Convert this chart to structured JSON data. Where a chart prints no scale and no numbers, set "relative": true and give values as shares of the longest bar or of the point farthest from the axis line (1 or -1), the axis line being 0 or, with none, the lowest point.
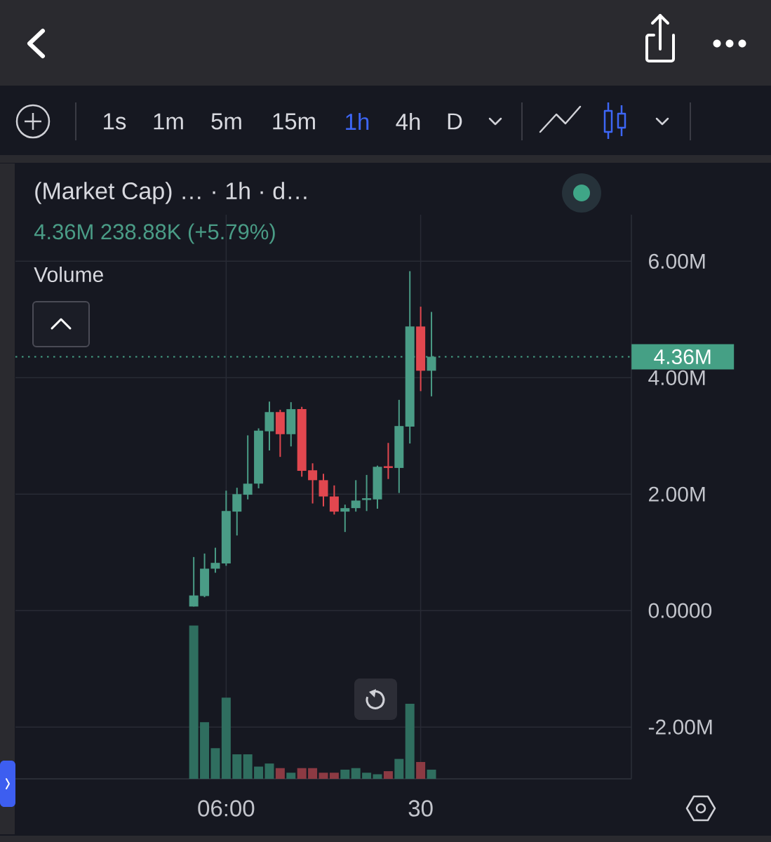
{
  "chart_data": [
    {
      "type": "candlestick",
      "title": "(Market Cap) … · 1h · d…",
      "subtitle": "4.36M 238.88K (+5.79%)",
      "categories": [
        null,
        null,
        null,
        null,
        null,
        null,
        null,
        null,
        null,
        null,
        null,
        null,
        null,
        null,
        null,
        null,
        null,
        null,
        null,
        "06:00",
        null,
        null,
        null,
        null,
        null,
        null,
        null,
        null,
        null,
        null,
        null,
        null,
        null,
        null,
        null,
        null,
        null,
        "30",
        null,
        null,
        null,
        null,
        null,
        null,
        null,
        null,
        null,
        null,
        null,
        null,
        null,
        null,
        null,
        null,
        null,
        null,
        null
      ],
      "ohlc": [
        null,
        null,
        null,
        null,
        null,
        null,
        null,
        null,
        null,
        null,
        null,
        null,
        null,
        null,
        null,
        null,
        [
          0.07,
          0.92,
          0.07,
          0.26
        ],
        [
          0.25,
          0.98,
          0.23,
          0.72
        ],
        [
          0.72,
          1.08,
          0.65,
          0.82
        ],
        [
          0.81,
          2.06,
          0.77,
          1.71
        ],
        [
          1.7,
          2.11,
          1.29,
          2.0
        ],
        [
          1.99,
          3.01,
          1.91,
          2.18
        ],
        [
          2.18,
          3.13,
          2.1,
          3.09
        ],
        [
          3.08,
          3.59,
          2.75,
          3.41
        ],
        [
          3.41,
          3.45,
          2.64,
          3.03
        ],
        [
          3.03,
          3.58,
          2.82,
          3.46
        ],
        [
          3.46,
          3.5,
          2.3,
          2.4
        ],
        [
          2.41,
          2.53,
          1.84,
          2.24
        ],
        [
          2.24,
          2.35,
          1.79,
          1.96
        ],
        [
          1.96,
          2.15,
          1.65,
          1.7
        ],
        [
          1.7,
          1.82,
          1.35,
          1.76
        ],
        [
          1.76,
          2.24,
          1.7,
          1.89
        ],
        [
          1.9,
          2.33,
          1.71,
          1.93
        ],
        [
          1.91,
          2.49,
          1.75,
          2.47
        ],
        [
          2.48,
          2.88,
          2.26,
          2.45
        ],
        [
          2.45,
          3.62,
          2.02,
          3.17
        ],
        [
          3.16,
          5.83,
          2.87,
          4.88
        ],
        [
          4.88,
          5.22,
          3.77,
          4.12
        ],
        [
          4.12,
          5.13,
          3.68,
          4.36
        ],
        null,
        null,
        null,
        null,
        null,
        null,
        null,
        null,
        null,
        null,
        null,
        null,
        null,
        null,
        null,
        null,
        null,
        null
      ],
      "colors": [
        null,
        null,
        null,
        null,
        null,
        null,
        null,
        null,
        null,
        null,
        null,
        null,
        null,
        null,
        null,
        null,
        "#4a9c86",
        "#4a9c86",
        "#4a9c86",
        "#4a9c86",
        "#4a9c86",
        "#4a9c86",
        "#4a9c86",
        "#4a9c86",
        "#e2474f",
        "#4a9c86",
        "#e2474f",
        "#e2474f",
        "#e2474f",
        "#e2474f",
        "#4a9c86",
        "#4a9c86",
        "#4a9c86",
        "#4a9c86",
        "#e2474f",
        "#4a9c86",
        "#4a9c86",
        "#e2474f",
        "#4a9c86",
        null,
        null,
        null,
        null,
        null,
        null,
        null,
        null,
        null,
        null,
        null,
        null,
        null,
        null,
        null,
        null,
        null,
        null
      ],
      "ylim": [
        -2.89,
        6.8
      ],
      "yticks": [
        {
          "value": -2,
          "label": "-2.00M"
        },
        {
          "value": 0,
          "label": "0.0000"
        },
        {
          "value": 2,
          "label": "2.00M"
        },
        {
          "value": 4,
          "label": "4.00M"
        },
        {
          "value": 6,
          "label": "6.00M"
        }
      ],
      "grid": true,
      "ref_lines": [
        {
          "axis": "y",
          "value": 4.36,
          "label": "4.36M",
          "color": "#45a085",
          "line_style": "dotted"
        }
      ],
      "annotations": [
        "1s",
        "1m",
        "5m",
        "15m",
        "1h",
        "4h",
        "D"
      ]
    },
    {
      "type": "bar",
      "title": "Volume",
      "relative": true,
      "categories": [
        null,
        null,
        null,
        null,
        null,
        null,
        null,
        null,
        null,
        null,
        null,
        null,
        null,
        null,
        null,
        null,
        null,
        null,
        null,
        null,
        null,
        null,
        null,
        null,
        null,
        null,
        null,
        null,
        null,
        null,
        null,
        null,
        null,
        null,
        null,
        null,
        null,
        null,
        null,
        null,
        null,
        null,
        null,
        null,
        null,
        null,
        null,
        null,
        null,
        null,
        null,
        null,
        null,
        null,
        null,
        null,
        null
      ],
      "values": [
        null,
        null,
        null,
        null,
        null,
        null,
        null,
        null,
        null,
        null,
        null,
        null,
        null,
        null,
        null,
        null,
        1,
        0.37,
        0.2,
        0.53,
        0.16,
        0.16,
        0.08,
        0.1,
        0.07,
        0.04,
        0.07,
        0.07,
        0.04,
        0.04,
        0.06,
        0.07,
        0.04,
        0.03,
        0.05,
        0.13,
        0.49,
        0.11,
        0.06,
        null,
        null,
        null,
        null,
        null,
        null,
        null,
        null,
        null,
        null,
        null,
        null,
        null,
        null,
        null,
        null,
        null,
        null
      ],
      "colors": [
        null,
        null,
        null,
        null,
        null,
        null,
        null,
        null,
        null,
        null,
        null,
        null,
        null,
        null,
        null,
        null,
        "#2f6e5f",
        "#2f6e5f",
        "#2f6e5f",
        "#2f6e5f",
        "#2f6e5f",
        "#2f6e5f",
        "#2f6e5f",
        "#2f6e5f",
        "#8c3a43",
        "#2f6e5f",
        "#8c3a43",
        "#8c3a43",
        "#8c3a43",
        "#8c3a43",
        "#2f6e5f",
        "#2f6e5f",
        "#2f6e5f",
        "#2f6e5f",
        "#8c3a43",
        "#2f6e5f",
        "#2f6e5f",
        "#8c3a43",
        "#2f6e5f",
        null,
        null,
        null,
        null,
        null,
        null,
        null,
        null,
        null,
        null,
        null,
        null,
        null,
        null,
        null,
        null,
        null,
        null
      ]
    }
  ]
}
